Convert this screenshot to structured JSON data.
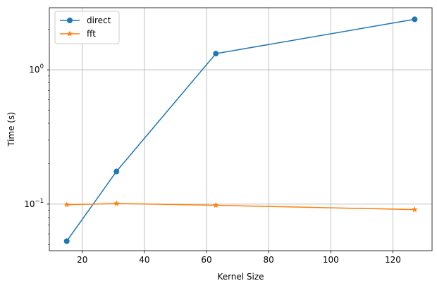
{
  "chart_data": {
    "type": "line",
    "xlabel": "Kernel Size",
    "ylabel": "Time (s)",
    "yscale": "log",
    "xlim": [
      9.4,
      132.6
    ],
    "ylim": [
      0.045,
      2.9
    ],
    "grid": true,
    "legend_position": "top-left",
    "x_ticks": [
      {
        "value": 20,
        "label": "20"
      },
      {
        "value": 40,
        "label": "40"
      },
      {
        "value": 60,
        "label": "60"
      },
      {
        "value": 80,
        "label": "80"
      },
      {
        "value": 100,
        "label": "100"
      },
      {
        "value": 120,
        "label": "120"
      }
    ],
    "y_ticks": [
      {
        "value": 0.1,
        "base": "10",
        "exp": "−1"
      },
      {
        "value": 1,
        "base": "10",
        "exp": "0"
      }
    ],
    "series": [
      {
        "name": "direct",
        "color": "#1f77b4",
        "marker": "circle",
        "x": [
          15,
          31,
          63,
          127
        ],
        "y": [
          0.053,
          0.175,
          1.32,
          2.38
        ]
      },
      {
        "name": "fft",
        "color": "#ff7f0e",
        "marker": "star",
        "x": [
          15,
          31,
          63,
          127
        ],
        "y": [
          0.099,
          0.101,
          0.098,
          0.091
        ]
      }
    ]
  }
}
